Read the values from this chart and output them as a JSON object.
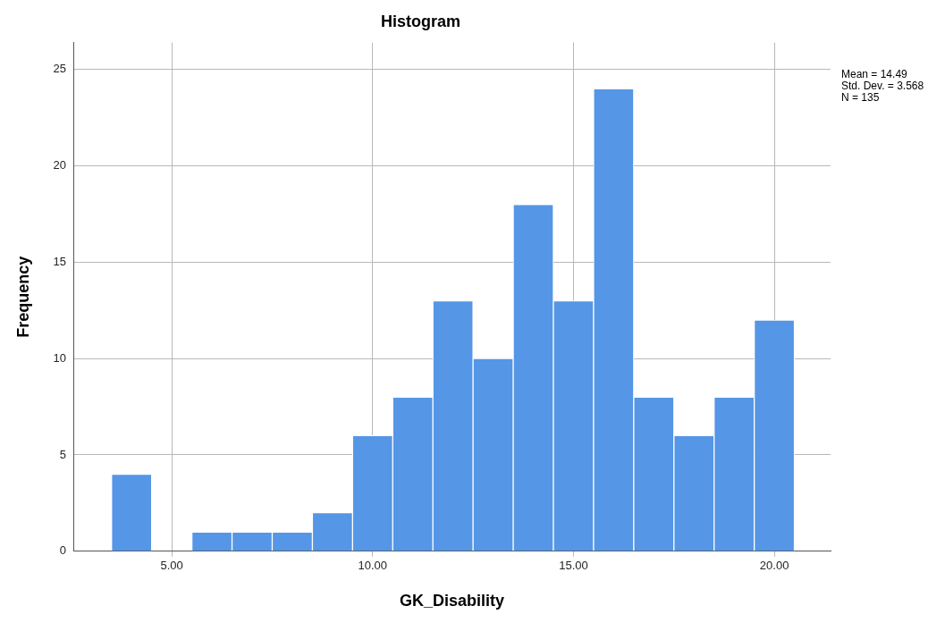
{
  "chart_data": {
    "type": "histogram",
    "title": "Histogram",
    "xlabel": "GK_Disability",
    "ylabel": "Frequency",
    "bins": [
      3.5,
      4.5,
      5.5,
      6.5,
      7.5,
      8.5,
      9.5,
      10.5,
      11.5,
      12.5,
      13.5,
      14.5,
      15.5,
      16.5,
      17.5,
      18.5,
      19.5,
      20.5
    ],
    "values": [
      4,
      0,
      1,
      1,
      1,
      2,
      6,
      8,
      13,
      10,
      18,
      13,
      24,
      8,
      6,
      8,
      12
    ],
    "color": "#5596e6",
    "xlim": [
      2.55,
      21.4
    ],
    "xticks": [
      {
        "value": 5,
        "label": "5.00"
      },
      {
        "value": 10,
        "label": "10.00"
      },
      {
        "value": 15,
        "label": "15.00"
      },
      {
        "value": 20,
        "label": "20.00"
      }
    ],
    "ylim": [
      0,
      26.4
    ],
    "yticks": [
      0,
      5,
      10,
      15,
      20,
      25
    ],
    "grid": true,
    "annotations": [
      "Mean = 14.49",
      "Std. Dev. = 3.568",
      "N = 135"
    ]
  }
}
